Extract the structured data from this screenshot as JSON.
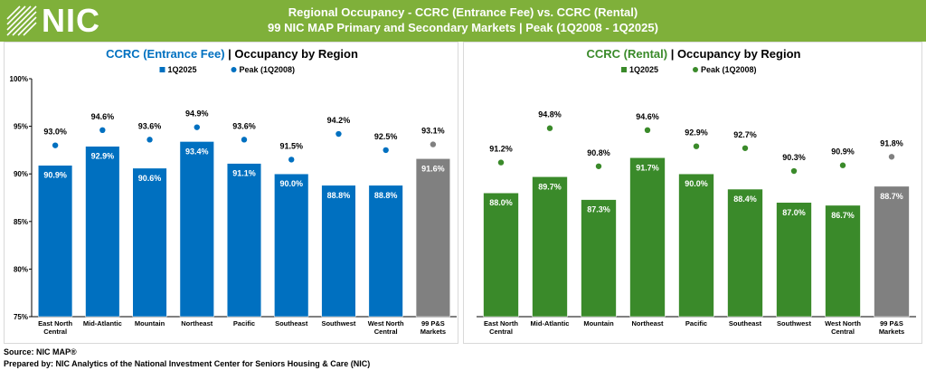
{
  "header": {
    "logo_text": "NIC",
    "title_line1": "Regional Occupancy - CCRC (Entrance Fee) vs. CCRC (Rental)",
    "title_line2": "99 NIC MAP Primary and Secondary Markets | Peak (1Q2008 - 1Q2025)",
    "background_color": "#7fb03a"
  },
  "chart_data": [
    {
      "type": "bar",
      "title_part1": "CCRC (Entrance Fee)",
      "title_part2": " | Occupancy by Region",
      "title_color": "#0070c0",
      "categories": [
        [
          "East North",
          "Central"
        ],
        [
          "Mid-Atlantic"
        ],
        [
          "Mountain"
        ],
        [
          "Northeast"
        ],
        [
          "Pacific"
        ],
        [
          "Southeast"
        ],
        [
          "Southwest"
        ],
        [
          "West North",
          "Central"
        ],
        [
          "99 P&S",
          "Markets"
        ]
      ],
      "series": [
        {
          "name": "1Q2025",
          "kind": "bar",
          "values": [
            90.9,
            92.9,
            90.6,
            93.4,
            91.1,
            90.0,
            88.8,
            88.8,
            91.6
          ],
          "labels": [
            "90.9%",
            "92.9%",
            "90.6%",
            "93.4%",
            "91.1%",
            "90.0%",
            "88.8%",
            "88.8%",
            "91.6%"
          ]
        },
        {
          "name": "Peak (1Q2008)",
          "kind": "point",
          "values": [
            93.0,
            94.6,
            93.6,
            94.9,
            93.6,
            91.5,
            94.2,
            92.5,
            93.1
          ],
          "labels": [
            "93.0%",
            "94.6%",
            "93.6%",
            "94.9%",
            "93.6%",
            "91.5%",
            "94.2%",
            "92.5%",
            "93.1%"
          ]
        }
      ],
      "colors": {
        "bar": "#0070c0",
        "point": "#0070c0",
        "aggregate": "#808080"
      },
      "ylim": [
        75,
        100
      ],
      "yticks": [
        "75%",
        "80%",
        "85%",
        "90%",
        "95%",
        "100%"
      ],
      "ytick_values": [
        75,
        80,
        85,
        90,
        95,
        100
      ],
      "grid": false,
      "legend_position": "top-center"
    },
    {
      "type": "bar",
      "title_part1": "CCRC (Rental)",
      "title_part2": " | Occupancy by Region",
      "title_color": "#3a8a2a",
      "categories": [
        [
          "East North",
          "Central"
        ],
        [
          "Mid-Atlantic"
        ],
        [
          "Mountain"
        ],
        [
          "Northeast"
        ],
        [
          "Pacific"
        ],
        [
          "Southeast"
        ],
        [
          "Southwest"
        ],
        [
          "West North",
          "Central"
        ],
        [
          "99 P&S",
          "Markets"
        ]
      ],
      "series": [
        {
          "name": "1Q2025",
          "kind": "bar",
          "values": [
            88.0,
            89.7,
            87.3,
            91.7,
            90.0,
            88.4,
            87.0,
            86.7,
            88.7
          ],
          "labels": [
            "88.0%",
            "89.7%",
            "87.3%",
            "91.7%",
            "90.0%",
            "88.4%",
            "87.0%",
            "86.7%",
            "88.7%"
          ]
        },
        {
          "name": "Peak (1Q2008)",
          "kind": "point",
          "values": [
            91.2,
            94.8,
            90.8,
            94.6,
            92.9,
            92.7,
            90.3,
            90.9,
            91.8
          ],
          "labels": [
            "91.2%",
            "94.8%",
            "90.8%",
            "94.6%",
            "92.9%",
            "92.7%",
            "90.3%",
            "90.9%",
            "91.8%"
          ]
        }
      ],
      "colors": {
        "bar": "#3a8a2a",
        "point": "#3a8a2a",
        "aggregate": "#808080"
      },
      "ylim": [
        75,
        100
      ],
      "grid": false,
      "legend_position": "top-center"
    }
  ],
  "footer": {
    "source": "Source: NIC MAP®",
    "prepared": "Prepared by: NIC Analytics of the National Investment Center for Seniors Housing & Care (NIC)"
  }
}
